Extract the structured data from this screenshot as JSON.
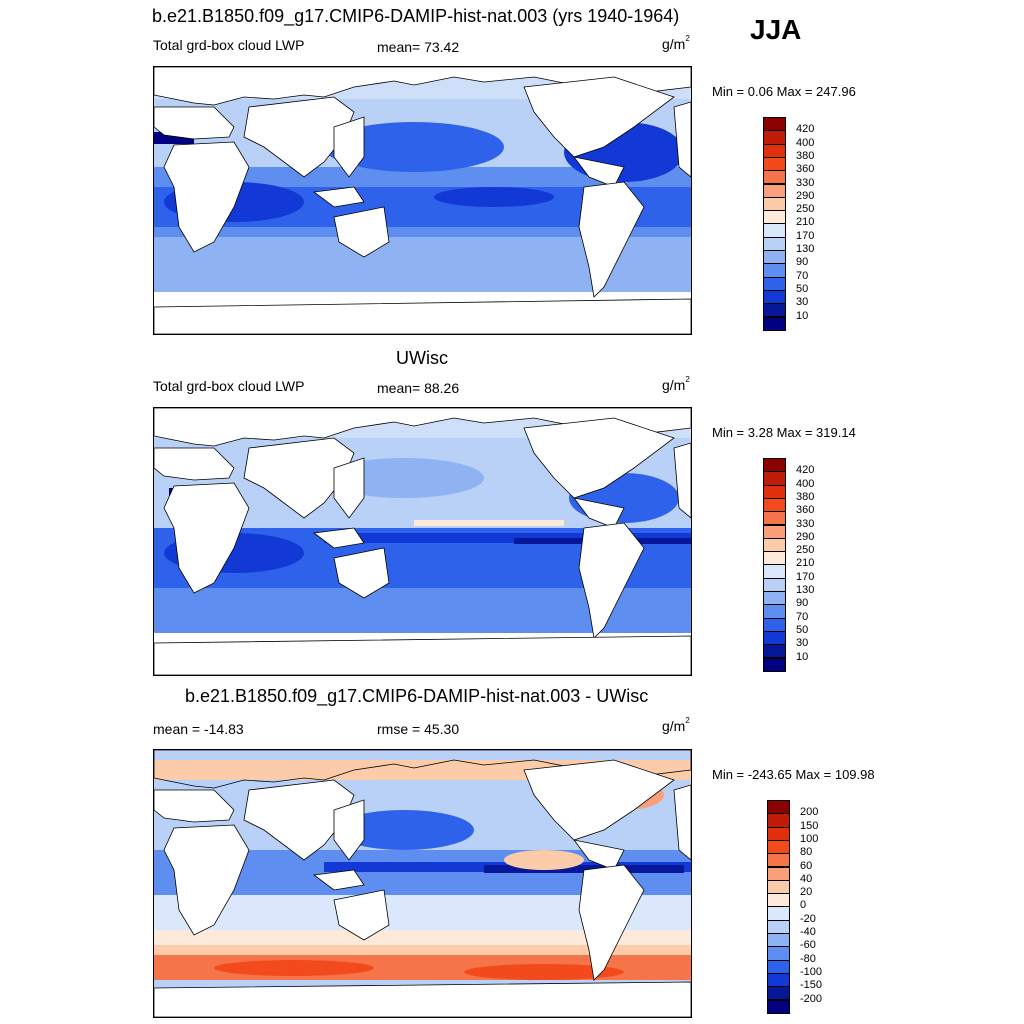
{
  "season": "JJA",
  "panels": [
    {
      "title": "b.e21.B1850.f09_g17.CMIP6-DAMIP-hist-nat.003 (yrs 1940-1964)",
      "left_label": "Total grd-box cloud LWP",
      "mid_label": "mean=  73.42",
      "units": "g/m",
      "units_exp": "2",
      "minmax": "Min =   0.06 Max = 247.96",
      "scale": "abs",
      "levels": [
        "420",
        "400",
        "380",
        "360",
        "330",
        "290",
        "250",
        "210",
        "170",
        "130",
        "90",
        "70",
        "50",
        "30",
        "10"
      ]
    },
    {
      "title": "UWisc",
      "left_label": "Total grd-box cloud LWP",
      "mid_label": "mean=  88.26",
      "units": "g/m",
      "units_exp": "2",
      "minmax": "Min =   3.28 Max = 319.14",
      "scale": "abs",
      "levels": [
        "420",
        "400",
        "380",
        "360",
        "330",
        "290",
        "250",
        "210",
        "170",
        "130",
        "90",
        "70",
        "50",
        "30",
        "10"
      ]
    },
    {
      "title": "b.e21.B1850.f09_g17.CMIP6-DAMIP-hist-nat.003 - UWisc",
      "left_label": "mean = -14.83",
      "mid_label": "rmse =  45.30",
      "units": "g/m",
      "units_exp": "2",
      "minmax": "Min = -243.65 Max = 109.98",
      "scale": "diff",
      "levels": [
        "200",
        "150",
        "100",
        "80",
        "60",
        "40",
        "20",
        "0",
        "-20",
        "-40",
        "-60",
        "-80",
        "-100",
        "-150",
        "-200"
      ]
    }
  ],
  "colors": {
    "abs": [
      "#8b0000",
      "#c11c08",
      "#e0300e",
      "#f24a1c",
      "#f6744a",
      "#f9a07a",
      "#fccbaa",
      "#fdeadb",
      "#dbe7fa",
      "#b9d1f7",
      "#8fb3f2",
      "#5e8ef0",
      "#2f62ea",
      "#1238d6",
      "#07179a",
      "#000080"
    ],
    "diff": [
      "#8b0000",
      "#c11c08",
      "#e0300e",
      "#f24a1c",
      "#f6744a",
      "#f9a07a",
      "#fccbaa",
      "#fdeadb",
      "#dbe7fa",
      "#b9d1f7",
      "#8fb3f2",
      "#5e8ef0",
      "#2f62ea",
      "#1238d6",
      "#07179a",
      "#000080"
    ]
  }
}
